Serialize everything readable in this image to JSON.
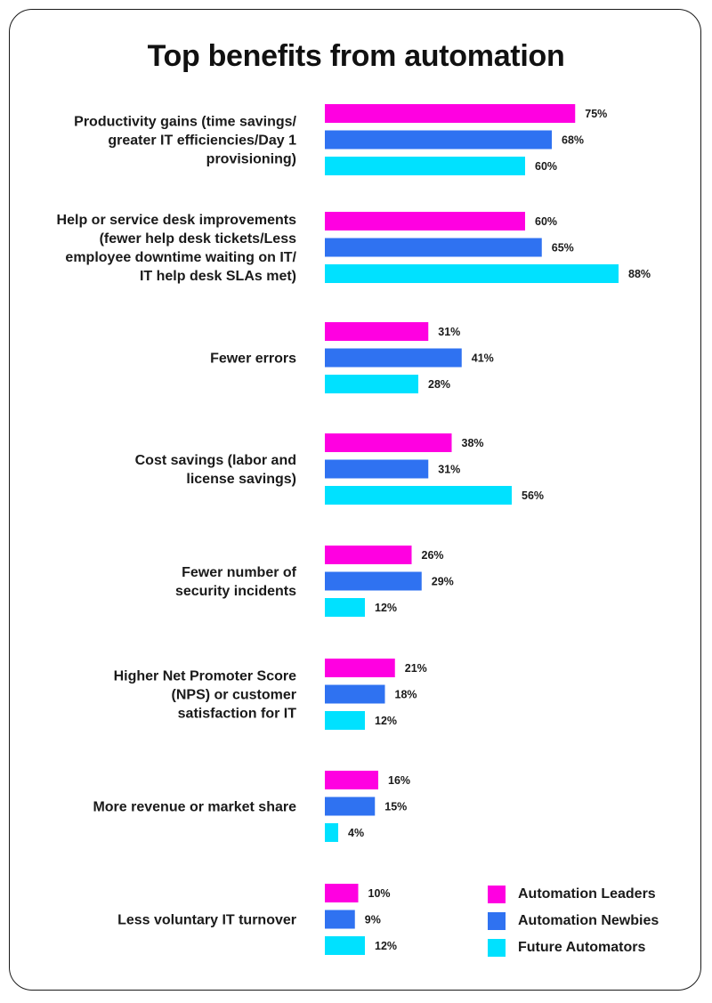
{
  "colors": {
    "Automation Leaders": "#ff00e1",
    "Automation Newbies": "#2f72f1",
    "Future Automators": "#00e1ff"
  },
  "chart_data": {
    "type": "bar",
    "orientation": "horizontal",
    "title": "Top benefits from automation",
    "categories": [
      [
        "Productivity gains (time savings/",
        "greater IT efficiencies/Day 1",
        "provisioning)"
      ],
      [
        "Help or service desk improvements",
        "(fewer help desk tickets/Less",
        "employee downtime waiting on IT/",
        "IT help desk SLAs met)"
      ],
      [
        "Fewer errors"
      ],
      [
        "Cost savings (labor and",
        "license savings)"
      ],
      [
        "Fewer number of",
        "security incidents"
      ],
      [
        "Higher Net Promoter Score",
        "(NPS) or customer",
        "satisfaction for IT"
      ],
      [
        "More revenue or market share"
      ],
      [
        "Less voluntary IT turnover"
      ]
    ],
    "series": [
      {
        "name": "Automation Leaders",
        "values": [
          75,
          60,
          31,
          38,
          26,
          21,
          16,
          10
        ]
      },
      {
        "name": "Automation Newbies",
        "values": [
          68,
          65,
          41,
          31,
          29,
          18,
          15,
          9
        ]
      },
      {
        "name": "Future Automators",
        "values": [
          60,
          88,
          28,
          56,
          12,
          12,
          4,
          12
        ]
      }
    ],
    "value_suffix": "%",
    "legend_position": "bottom-right",
    "grid": false
  }
}
